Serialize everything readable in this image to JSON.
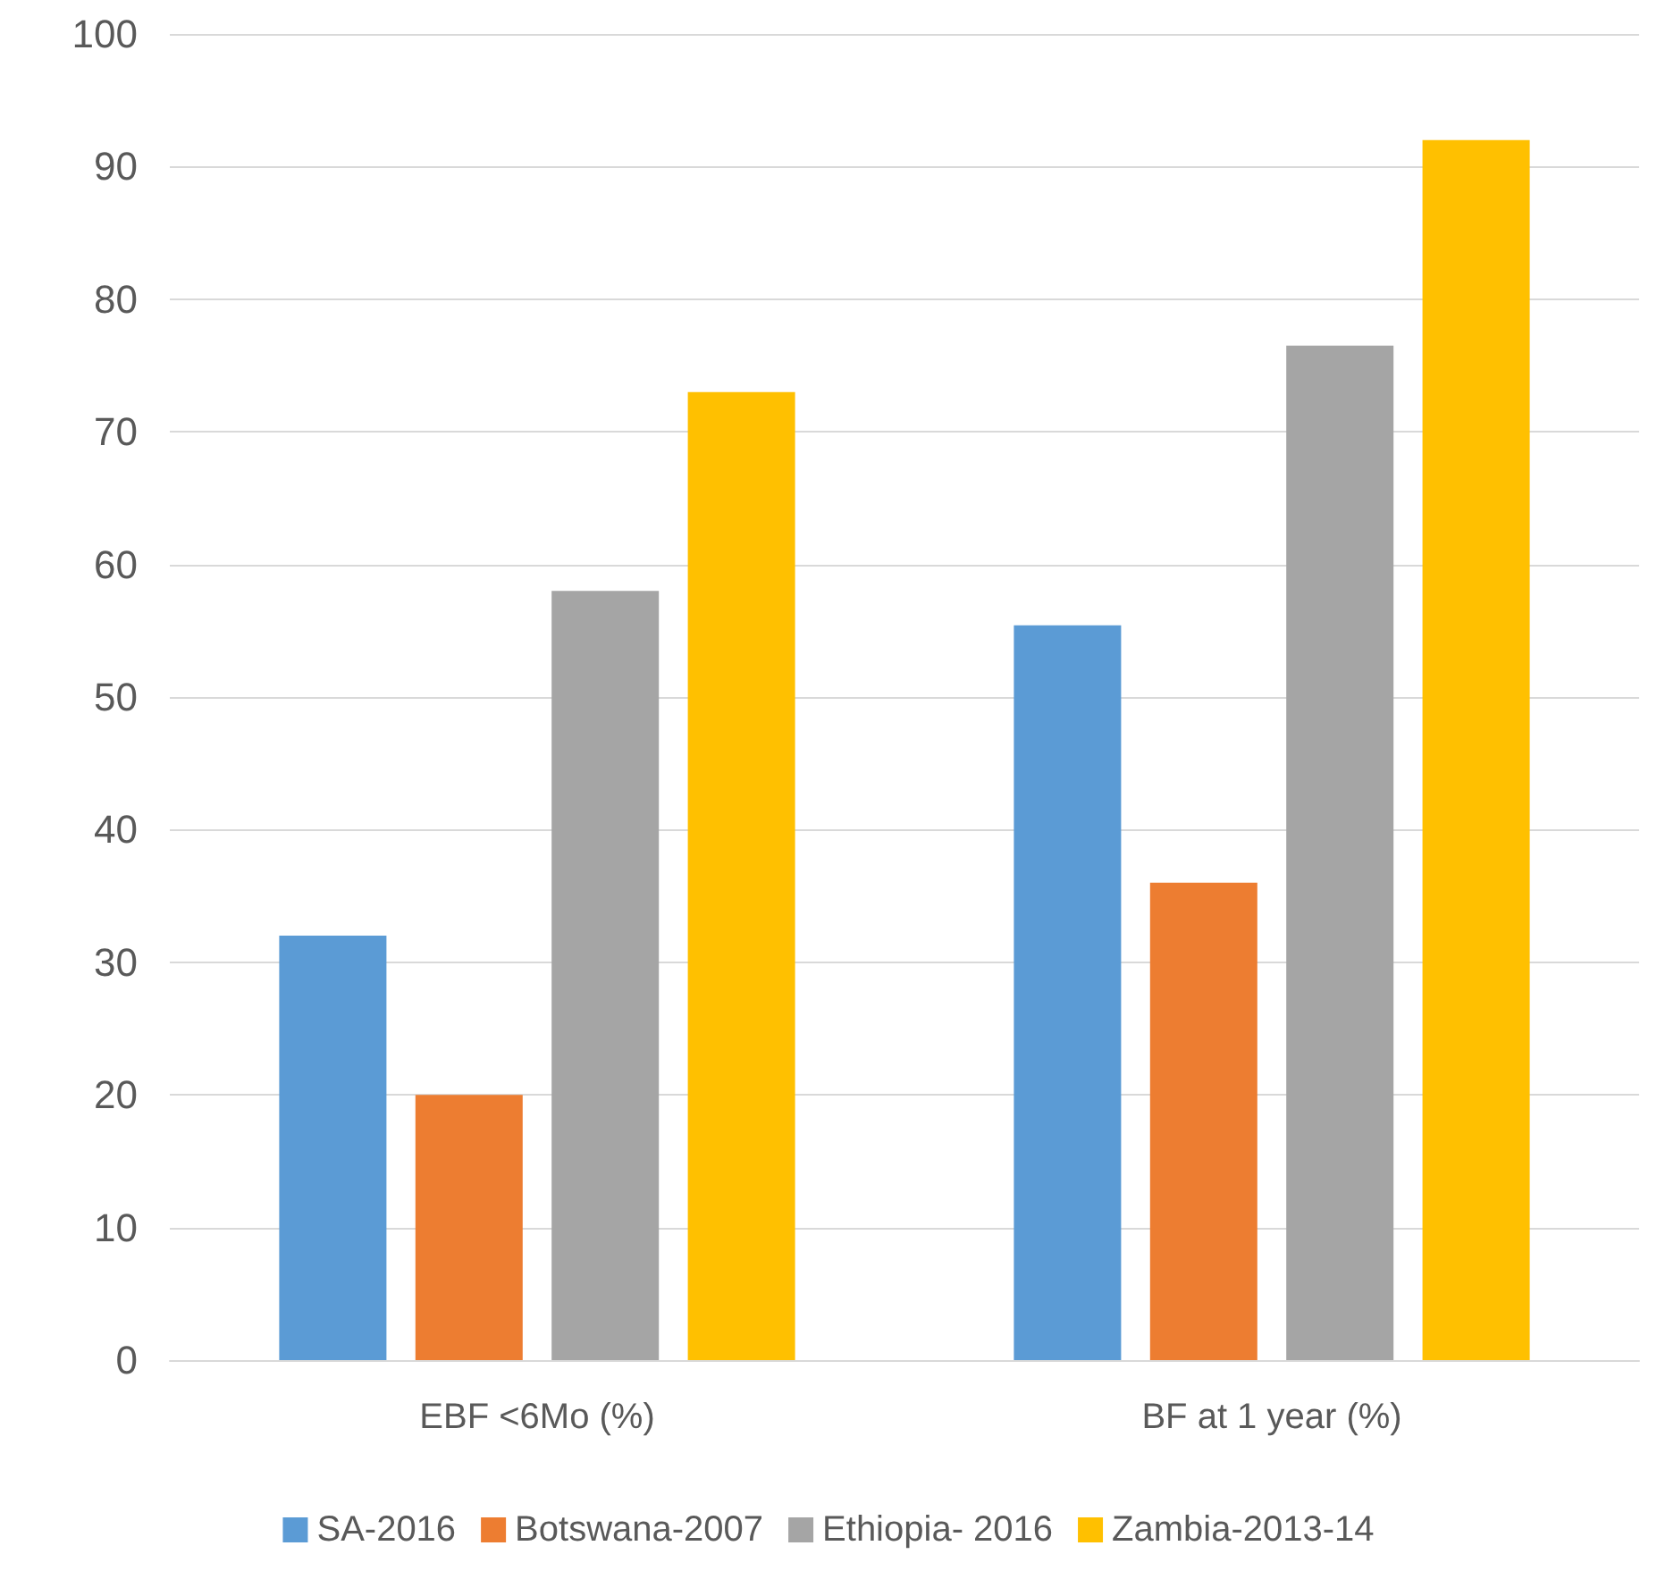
{
  "chart_data": {
    "type": "bar",
    "categories": [
      "EBF <6Mo (%)",
      "BF at 1 year (%)"
    ],
    "series": [
      {
        "name": "SA-2016",
        "color": "#5b9bd5",
        "values": [
          32,
          55.4
        ]
      },
      {
        "name": "Botswana-2007",
        "color": "#ed7d31",
        "values": [
          20,
          36
        ]
      },
      {
        "name": "Ethiopia- 2016",
        "color": "#a5a5a5",
        "values": [
          58,
          76.5
        ]
      },
      {
        "name": "Zambia-2013-14",
        "color": "#ffc000",
        "values": [
          73,
          92
        ]
      }
    ],
    "ylim": [
      0,
      100
    ],
    "yticks": [
      0,
      10,
      20,
      30,
      40,
      50,
      60,
      70,
      80,
      90,
      100
    ],
    "grid": "y",
    "legend": "bottom"
  }
}
